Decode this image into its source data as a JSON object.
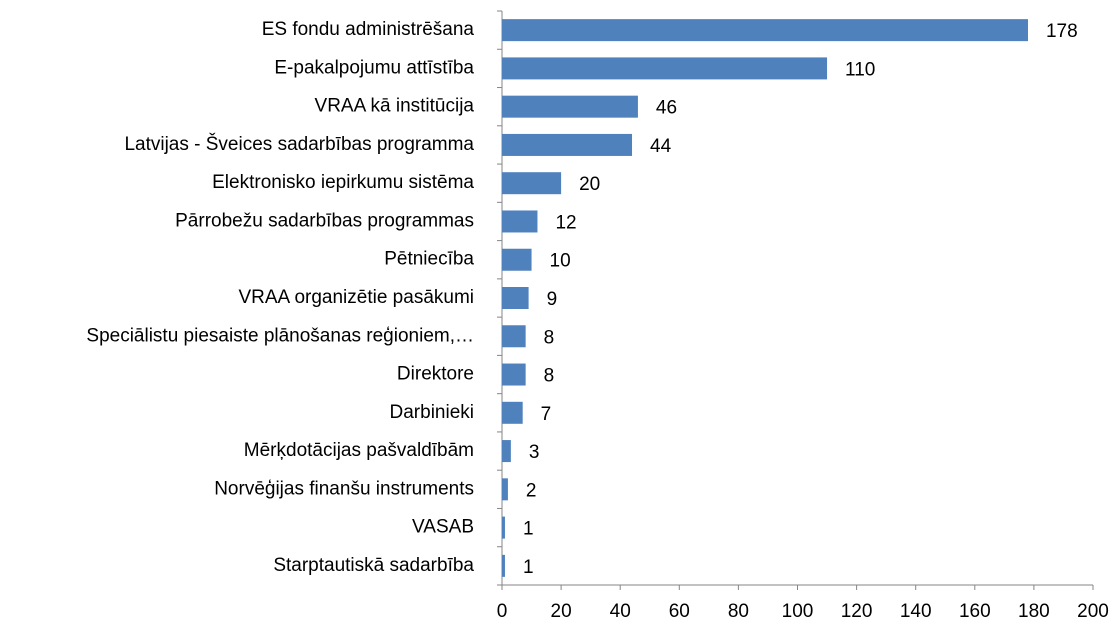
{
  "chart_data": {
    "type": "bar",
    "orientation": "horizontal",
    "categories": [
      "ES fondu administrēšana",
      "E-pakalpojumu attīstība",
      "VRAA kā institūcija",
      "Latvijas - Šveices sadarbības programma",
      "Elektronisko iepirkumu sistēma",
      "Pārrobežu sadarbības programmas",
      "Pētniecība",
      "VRAA organizētie pasākumi",
      "Speciālistu piesaiste plānošanas reģioniem,…",
      "Direktore",
      "Darbinieki",
      "Mērķdotācijas  pašvaldībām",
      "Norvēģijas finanšu instruments",
      "VASAB",
      "Starptautiskā sadarbība"
    ],
    "values": [
      178,
      110,
      46,
      44,
      20,
      12,
      10,
      9,
      8,
      8,
      7,
      3,
      2,
      1,
      1
    ],
    "color": "#4f81bd",
    "xlim": [
      0,
      200
    ],
    "xticks": [
      0,
      20,
      40,
      60,
      80,
      100,
      120,
      140,
      160,
      180,
      200
    ],
    "grid": false
  }
}
